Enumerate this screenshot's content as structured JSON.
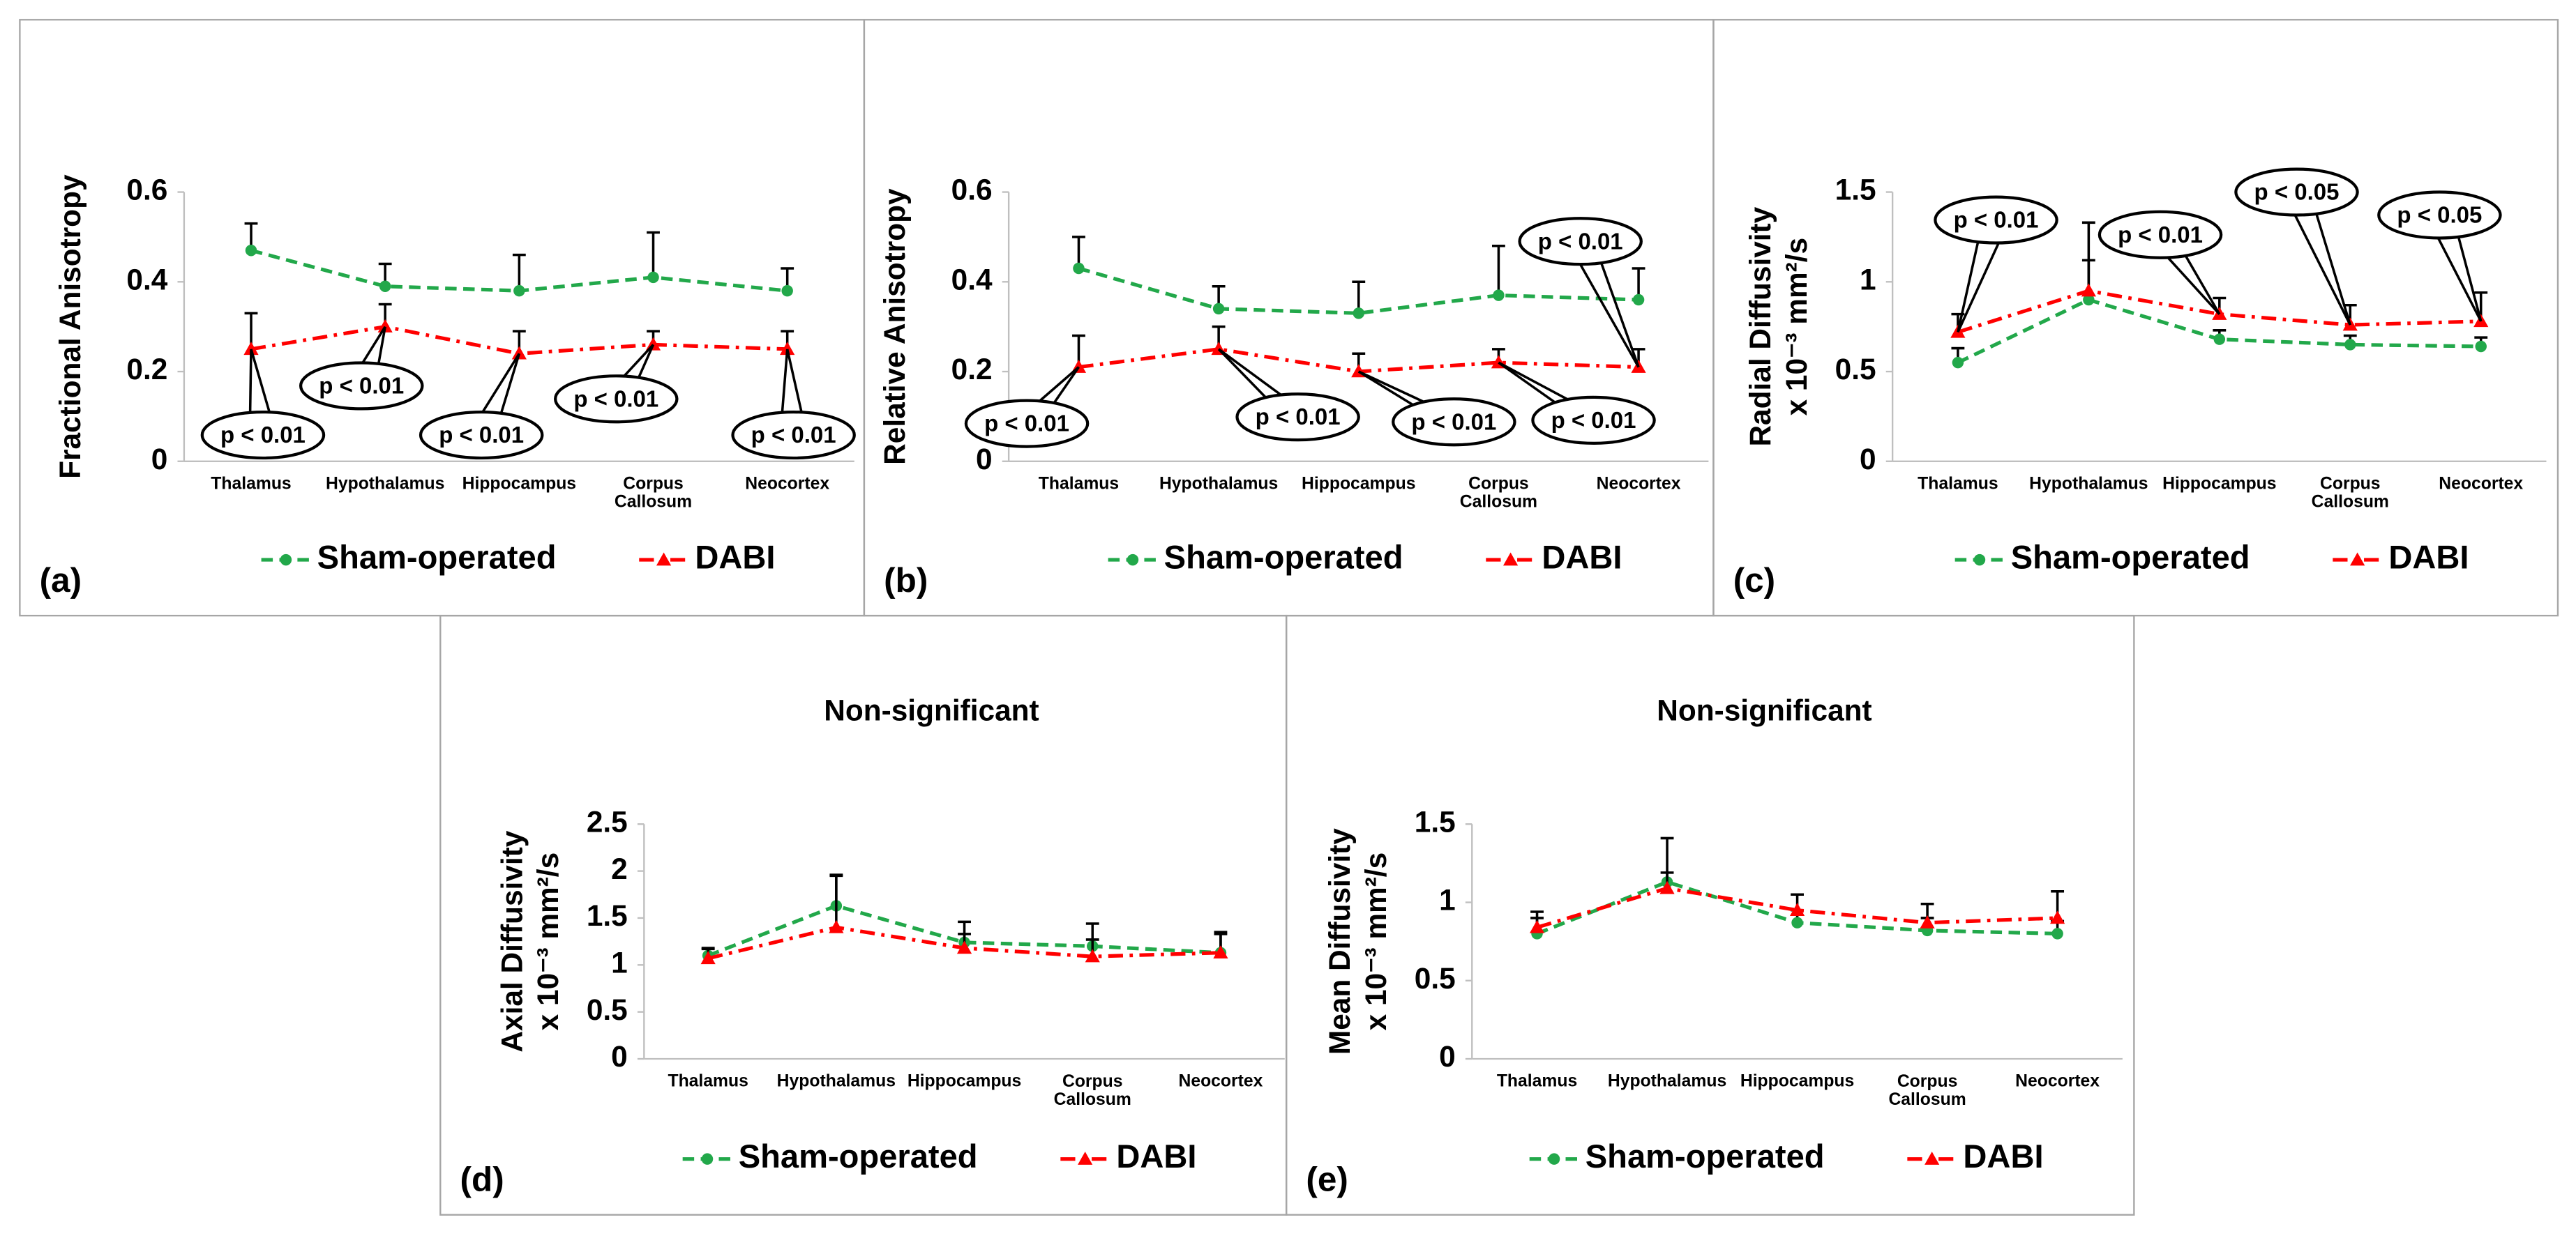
{
  "chart_data": [
    {
      "type": "line",
      "label": "(a)",
      "ylabel": [
        "Fractional Anisotropy"
      ],
      "categories": [
        "Thalamus",
        "Hypothalamus",
        "Hippocampus",
        "Corpus Callosum",
        "Neocortex"
      ],
      "ylim": [
        0,
        0.6
      ],
      "yticks": [
        0,
        0.2,
        0.4,
        0.6
      ],
      "series": [
        {
          "name": "Sham-operated",
          "color": "#22a84a",
          "values": [
            0.47,
            0.39,
            0.38,
            0.41,
            0.38
          ],
          "errors": [
            0.06,
            0.05,
            0.08,
            0.1,
            0.05
          ]
        },
        {
          "name": "DABI",
          "color": "#ff0000",
          "values": [
            0.25,
            0.3,
            0.24,
            0.26,
            0.25
          ],
          "errors": [
            0.08,
            0.05,
            0.05,
            0.03,
            0.04
          ],
          "annotations": [
            "p < 0.01",
            "p < 0.01",
            "p < 0.01",
            "p < 0.01",
            "p < 0.01"
          ]
        }
      ]
    },
    {
      "type": "line",
      "label": "(b)",
      "ylabel": [
        "Relative Anisotropy"
      ],
      "categories": [
        "Thalamus",
        "Hypothalamus",
        "Hippocampus",
        "Corpus Callosum",
        "Neocortex"
      ],
      "ylim": [
        0,
        0.6
      ],
      "yticks": [
        0,
        0.2,
        0.4,
        0.6
      ],
      "series": [
        {
          "name": "Sham-operated",
          "color": "#22a84a",
          "values": [
            0.43,
            0.34,
            0.33,
            0.37,
            0.36
          ],
          "errors": [
            0.07,
            0.05,
            0.07,
            0.11,
            0.07
          ]
        },
        {
          "name": "DABI",
          "color": "#ff0000",
          "values": [
            0.21,
            0.25,
            0.2,
            0.22,
            0.21
          ],
          "errors": [
            0.07,
            0.05,
            0.04,
            0.03,
            0.04
          ],
          "annotations": [
            "p < 0.01",
            "p < 0.01",
            "p < 0.01",
            "p < 0.01",
            "p < 0.01"
          ]
        }
      ]
    },
    {
      "type": "line",
      "label": "(c)",
      "ylabel": [
        "Radial  Diffusivity",
        "x 10⁻³ mm²/s"
      ],
      "categories": [
        "Thalamus",
        "Hypothalamus",
        "Hippocampus",
        "Corpus Callosum",
        "Neocortex"
      ],
      "ylim": [
        0,
        1.5
      ],
      "yticks": [
        0,
        0.5,
        1,
        1.5
      ],
      "series": [
        {
          "name": "Sham-operated",
          "color": "#22a84a",
          "values": [
            0.55,
            0.9,
            0.68,
            0.65,
            0.64
          ],
          "errors": [
            0.08,
            0.22,
            0.05,
            0.05,
            0.05
          ]
        },
        {
          "name": "DABI",
          "color": "#ff0000",
          "values": [
            0.72,
            0.95,
            0.82,
            0.76,
            0.78
          ],
          "errors": [
            0.1,
            0.38,
            0.09,
            0.11,
            0.16
          ],
          "annotations": [
            "p < 0.01",
            null,
            "p < 0.01",
            "p < 0.05",
            "p < 0.05"
          ]
        }
      ]
    },
    {
      "type": "line",
      "label": "(d)",
      "title": "Non-significant",
      "ylabel": [
        "Axial Diffusivity",
        "x 10⁻³ mm²/s"
      ],
      "categories": [
        "Thalamus",
        "Hypothalamus",
        "Hippocampus",
        "Corpus Callosum",
        "Neocortex"
      ],
      "ylim": [
        0,
        2.5
      ],
      "yticks": [
        0,
        0.5,
        1,
        1.5,
        2,
        2.5
      ],
      "series": [
        {
          "name": "Sham-operated",
          "color": "#22a84a",
          "values": [
            1.1,
            1.63,
            1.24,
            1.2,
            1.13
          ],
          "errors": [
            0.08,
            0.33,
            0.22,
            0.24,
            0.2
          ]
        },
        {
          "name": "DABI",
          "color": "#ff0000",
          "values": [
            1.07,
            1.4,
            1.18,
            1.09,
            1.13
          ],
          "errors": [
            0.1,
            0.55,
            0.15,
            0.18,
            0.22
          ]
        }
      ]
    },
    {
      "type": "line",
      "label": "(e)",
      "title": "Non-significant",
      "ylabel": [
        "Mean Diffusivity",
        "x 10⁻³ mm²/s"
      ],
      "categories": [
        "Thalamus",
        "Hypothalamus",
        "Hippocampus",
        "Corpus Callosum",
        "Neocortex"
      ],
      "ylim": [
        0,
        1.5
      ],
      "yticks": [
        0,
        0.5,
        1,
        1.5
      ],
      "series": [
        {
          "name": "Sham-operated",
          "color": "#22a84a",
          "values": [
            0.8,
            1.13,
            0.87,
            0.82,
            0.8
          ],
          "errors": [
            0.1,
            0.28,
            0.08,
            0.08,
            0.08
          ]
        },
        {
          "name": "DABI",
          "color": "#ff0000",
          "values": [
            0.84,
            1.09,
            0.95,
            0.87,
            0.9
          ],
          "errors": [
            0.1,
            0.1,
            0.1,
            0.12,
            0.17
          ]
        }
      ]
    }
  ]
}
